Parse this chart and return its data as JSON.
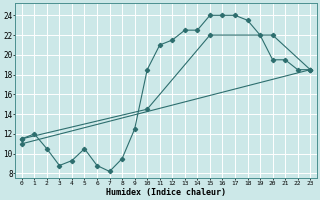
{
  "xlabel": "Humidex (Indice chaleur)",
  "bg_color": "#cce8e8",
  "grid_color": "#ffffff",
  "line_color": "#2d6e6e",
  "xlim": [
    -0.5,
    23.5
  ],
  "ylim": [
    7.5,
    25.2
  ],
  "xticks": [
    0,
    1,
    2,
    3,
    4,
    5,
    6,
    7,
    8,
    9,
    10,
    11,
    12,
    13,
    14,
    15,
    16,
    17,
    18,
    19,
    20,
    21,
    22,
    23
  ],
  "yticks": [
    8,
    10,
    12,
    14,
    16,
    18,
    20,
    22,
    24
  ],
  "series1_x": [
    0,
    1,
    2,
    3,
    4,
    5,
    6,
    7,
    8,
    9,
    10,
    11,
    12,
    13,
    14,
    15,
    16,
    17,
    18,
    19,
    20,
    21,
    22,
    23
  ],
  "series1_y": [
    11.5,
    12.0,
    10.5,
    8.8,
    9.3,
    10.5,
    8.8,
    8.2,
    9.5,
    12.5,
    18.5,
    21.0,
    21.5,
    22.5,
    22.5,
    24.0,
    24.0,
    24.0,
    23.5,
    22.0,
    19.5,
    19.5,
    18.5,
    18.5
  ],
  "series2_x": [
    0,
    23
  ],
  "series2_y": [
    11.0,
    18.5
  ],
  "series3_x": [
    0,
    10,
    15,
    20,
    23
  ],
  "series3_y": [
    11.5,
    14.5,
    22.0,
    22.0,
    18.5
  ]
}
